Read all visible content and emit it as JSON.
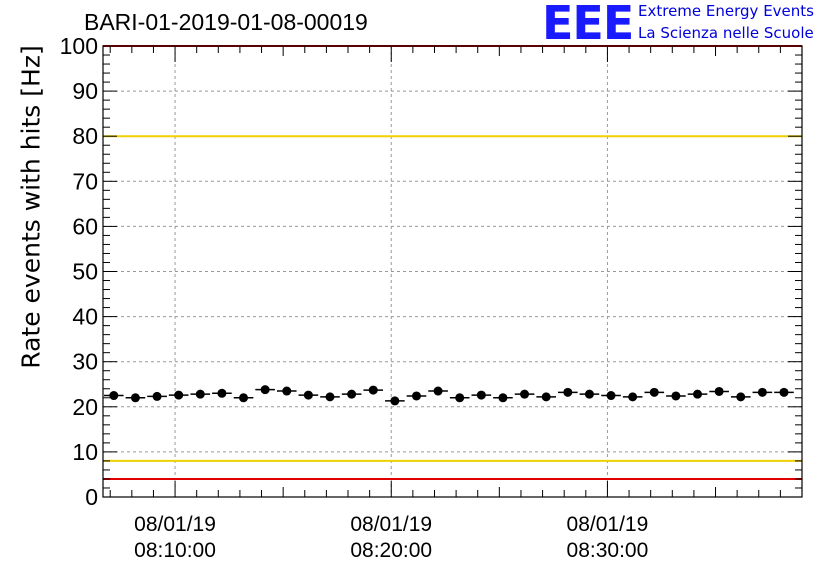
{
  "title": "BARI-01-2019-01-08-00019",
  "logo": {
    "mark": "EEE",
    "line1": "Extreme Energy Events",
    "line2": "La Scienza nelle Scuole",
    "color": "#1a1aff"
  },
  "chart_data": {
    "type": "scatter",
    "title": "BARI-01-2019-01-08-00019",
    "ylabel": "Rate events with hits [Hz]",
    "xlabel": "",
    "ylim": [
      0,
      100
    ],
    "yticks": [
      "0",
      "10",
      "20",
      "30",
      "40",
      "50",
      "60",
      "70",
      "80",
      "90",
      "100"
    ],
    "xticks": [
      {
        "date": "08/01/19",
        "time": "08:10:00"
      },
      {
        "date": "08/01/19",
        "time": "08:20:00"
      },
      {
        "date": "08/01/19",
        "time": "08:30:00"
      }
    ],
    "grid": true,
    "reference_lines": [
      {
        "y": 80,
        "color": "#f0d000"
      },
      {
        "y": 8,
        "color": "#f0d000"
      },
      {
        "y": 4,
        "color": "#e00000"
      },
      {
        "y": 100,
        "color": "#e00000"
      }
    ],
    "series": [
      {
        "marker_color": "#000000",
        "x_start": "08:06:40",
        "bin_minutes": 1,
        "values": [
          22.5,
          22,
          22.3,
          22.6,
          22.8,
          23,
          22,
          23.8,
          23.5,
          22.6,
          22.2,
          22.8,
          23.7,
          21.3,
          22.4,
          23.5,
          22,
          22.6,
          22,
          22.8,
          22.2,
          23.2,
          22.8,
          22.5,
          22.2,
          23.2,
          22.4,
          22.8,
          23.4,
          22.2,
          23.2,
          23.2
        ]
      }
    ]
  }
}
